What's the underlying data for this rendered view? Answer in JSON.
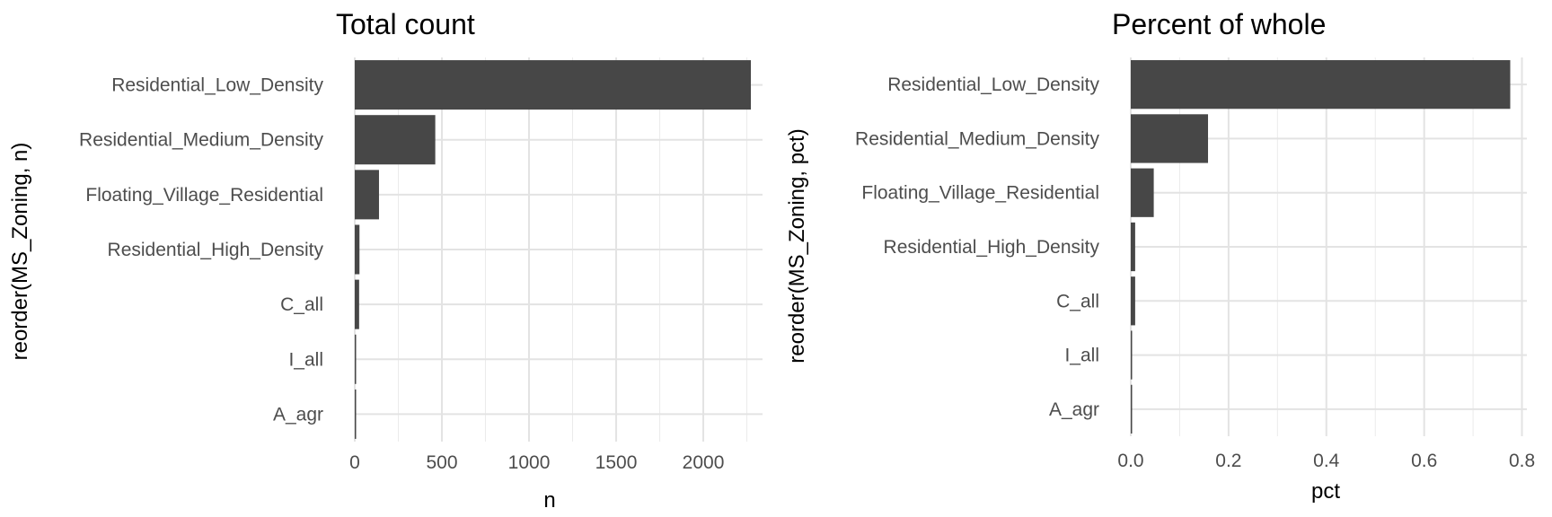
{
  "chart_data": [
    {
      "type": "bar",
      "orientation": "horizontal",
      "title": "Total count",
      "xlabel": "n",
      "ylabel": "reorder(MS_Zoning, n)",
      "categories": [
        "Residential_Low_Density",
        "Residential_Medium_Density",
        "Floating_Village_Residential",
        "Residential_High_Density",
        "C_all",
        "I_all",
        "A_agr"
      ],
      "values": [
        2273,
        462,
        139,
        27,
        25,
        2,
        2
      ],
      "xlim": [
        0,
        2273
      ],
      "xticks": [
        0,
        500,
        1000,
        1500,
        2000
      ],
      "xtick_labels": [
        "0",
        "500",
        "1000",
        "1500",
        "2000"
      ],
      "grid": true,
      "bar_color": "#474747"
    },
    {
      "type": "bar",
      "orientation": "horizontal",
      "title": "Percent of whole",
      "xlabel": "pct",
      "ylabel": "reorder(MS_Zoning, pct)",
      "categories": [
        "Residential_Low_Density",
        "Residential_Medium_Density",
        "Floating_Village_Residential",
        "Residential_High_Density",
        "C_all",
        "I_all",
        "A_agr"
      ],
      "values": [
        0.776,
        0.158,
        0.047,
        0.009,
        0.009,
        0.001,
        0.001
      ],
      "xlim": [
        0,
        0.8
      ],
      "xticks": [
        0,
        0.2,
        0.4,
        0.6,
        0.8
      ],
      "xtick_labels": [
        "0.0",
        "0.2",
        "0.4",
        "0.6",
        "0.8"
      ],
      "grid": true,
      "bar_color": "#474747"
    }
  ]
}
